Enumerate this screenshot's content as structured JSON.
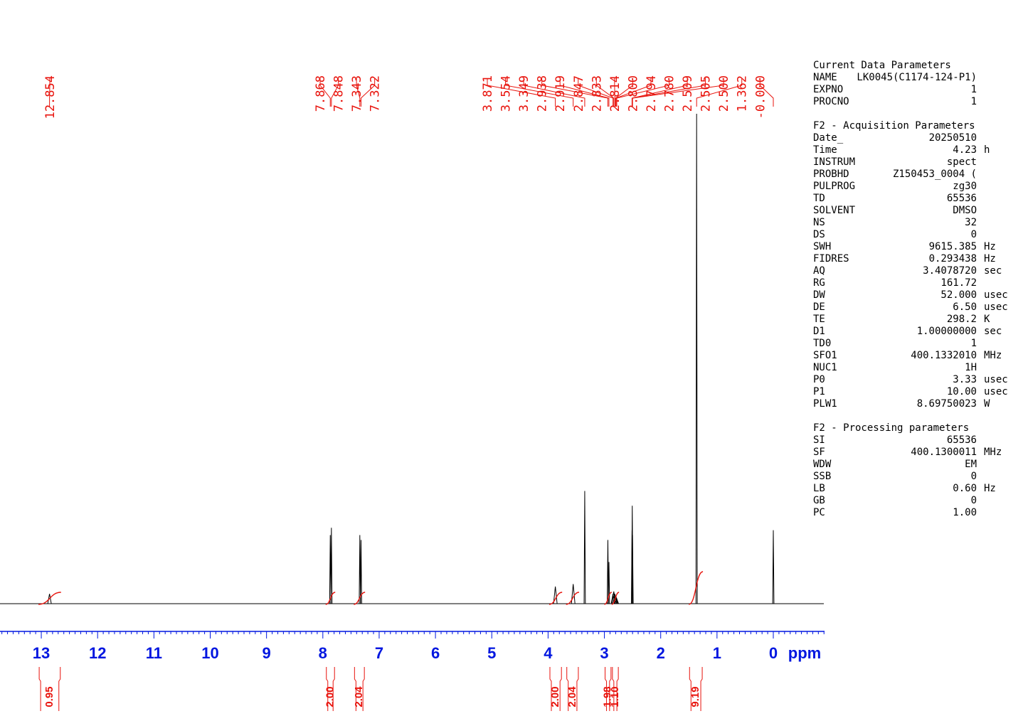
{
  "chart_data": {
    "type": "line",
    "xlabel": "ppm",
    "xlim": [
      13.0,
      -0.0
    ],
    "x_ticks": [
      "13",
      "12",
      "11",
      "10",
      "9",
      "8",
      "7",
      "6",
      "5",
      "4",
      "3",
      "2",
      "1",
      "0"
    ],
    "peaks": [
      {
        "ppm": 12.854,
        "height": 0.02
      },
      {
        "ppm": 7.868,
        "height": 0.14
      },
      {
        "ppm": 7.848,
        "height": 0.155
      },
      {
        "ppm": 7.343,
        "height": 0.14
      },
      {
        "ppm": 7.322,
        "height": 0.13
      },
      {
        "ppm": 3.871,
        "height": 0.035
      },
      {
        "ppm": 3.554,
        "height": 0.04
      },
      {
        "ppm": 3.349,
        "height": 0.23
      },
      {
        "ppm": 2.938,
        "height": 0.13
      },
      {
        "ppm": 2.919,
        "height": 0.085
      },
      {
        "ppm": 2.847,
        "height": 0.02
      },
      {
        "ppm": 2.833,
        "height": 0.025
      },
      {
        "ppm": 2.814,
        "height": 0.02
      },
      {
        "ppm": 2.8,
        "height": 0.015
      },
      {
        "ppm": 2.794,
        "height": 0.015
      },
      {
        "ppm": 2.78,
        "height": 0.01
      },
      {
        "ppm": 2.509,
        "height": 0.15
      },
      {
        "ppm": 2.505,
        "height": 0.2
      },
      {
        "ppm": 2.5,
        "height": 0.14
      },
      {
        "ppm": 1.362,
        "height": 1.0
      },
      {
        "ppm": -0.0,
        "height": 0.15
      }
    ],
    "peak_labels": [
      "12.854",
      "7.868",
      "7.848",
      "7.343",
      "7.322",
      "3.871",
      "3.554",
      "3.349",
      "2.938",
      "2.919",
      "2.847",
      "2.833",
      "2.814",
      "2.800",
      "2.794",
      "2.780",
      "2.509",
      "2.505",
      "2.500",
      "1.362",
      "-0.000"
    ],
    "integrals": [
      {
        "from": 13.05,
        "to": 12.65,
        "value": "0.95"
      },
      {
        "from": 7.95,
        "to": 7.78,
        "value": "2.00"
      },
      {
        "from": 7.45,
        "to": 7.25,
        "value": "2.04"
      },
      {
        "from": 3.98,
        "to": 3.75,
        "value": "2.00"
      },
      {
        "from": 3.68,
        "to": 3.45,
        "value": "2.04"
      },
      {
        "from": 3.0,
        "to": 2.87,
        "value": "1.98"
      },
      {
        "from": 2.87,
        "to": 2.74,
        "value": "1.10"
      },
      {
        "from": 1.5,
        "to": 1.25,
        "value": "9.19"
      }
    ],
    "colors": {
      "spectrum": "#000000",
      "annotation": "#e8130c",
      "axis": "#0016e0"
    }
  },
  "parameters": {
    "current": {
      "title": "Current Data Parameters",
      "rows": [
        {
          "name": "NAME",
          "value": "LK0045(C1174-124-P1)",
          "unit": ""
        },
        {
          "name": "EXPNO",
          "value": "1",
          "unit": ""
        },
        {
          "name": "PROCNO",
          "value": "1",
          "unit": ""
        }
      ]
    },
    "acquisition": {
      "title": "F2 - Acquisition Parameters",
      "rows": [
        {
          "name": "Date_",
          "value": "20250510",
          "unit": ""
        },
        {
          "name": "Time",
          "value": "4.23",
          "unit": "h"
        },
        {
          "name": "INSTRUM",
          "value": "spect",
          "unit": ""
        },
        {
          "name": "PROBHD",
          "value": "Z150453_0004 (",
          "unit": ""
        },
        {
          "name": "PULPROG",
          "value": "zg30",
          "unit": ""
        },
        {
          "name": "TD",
          "value": "65536",
          "unit": ""
        },
        {
          "name": "SOLVENT",
          "value": "DMSO",
          "unit": ""
        },
        {
          "name": "NS",
          "value": "32",
          "unit": ""
        },
        {
          "name": "DS",
          "value": "0",
          "unit": ""
        },
        {
          "name": "SWH",
          "value": "9615.385",
          "unit": "Hz"
        },
        {
          "name": "FIDRES",
          "value": "0.293438",
          "unit": "Hz"
        },
        {
          "name": "AQ",
          "value": "3.4078720",
          "unit": "sec"
        },
        {
          "name": "RG",
          "value": "161.72",
          "unit": ""
        },
        {
          "name": "DW",
          "value": "52.000",
          "unit": "usec"
        },
        {
          "name": "DE",
          "value": "6.50",
          "unit": "usec"
        },
        {
          "name": "TE",
          "value": "298.2",
          "unit": "K"
        },
        {
          "name": "D1",
          "value": "1.00000000",
          "unit": "sec"
        },
        {
          "name": "TD0",
          "value": "1",
          "unit": ""
        },
        {
          "name": "SFO1",
          "value": "400.1332010",
          "unit": "MHz"
        },
        {
          "name": "NUC1",
          "value": "1H",
          "unit": ""
        },
        {
          "name": "P0",
          "value": "3.33",
          "unit": "usec"
        },
        {
          "name": "P1",
          "value": "10.00",
          "unit": "usec"
        },
        {
          "name": "PLW1",
          "value": "8.69750023",
          "unit": "W"
        }
      ]
    },
    "processing": {
      "title": "F2 - Processing parameters",
      "rows": [
        {
          "name": "SI",
          "value": "65536",
          "unit": ""
        },
        {
          "name": "SF",
          "value": "400.1300011",
          "unit": "MHz"
        },
        {
          "name": "WDW",
          "value": "EM",
          "unit": ""
        },
        {
          "name": "SSB",
          "value": "0",
          "unit": ""
        },
        {
          "name": "LB",
          "value": "0.60",
          "unit": "Hz"
        },
        {
          "name": "GB",
          "value": "0",
          "unit": ""
        },
        {
          "name": "PC",
          "value": "1.00",
          "unit": ""
        }
      ]
    }
  }
}
